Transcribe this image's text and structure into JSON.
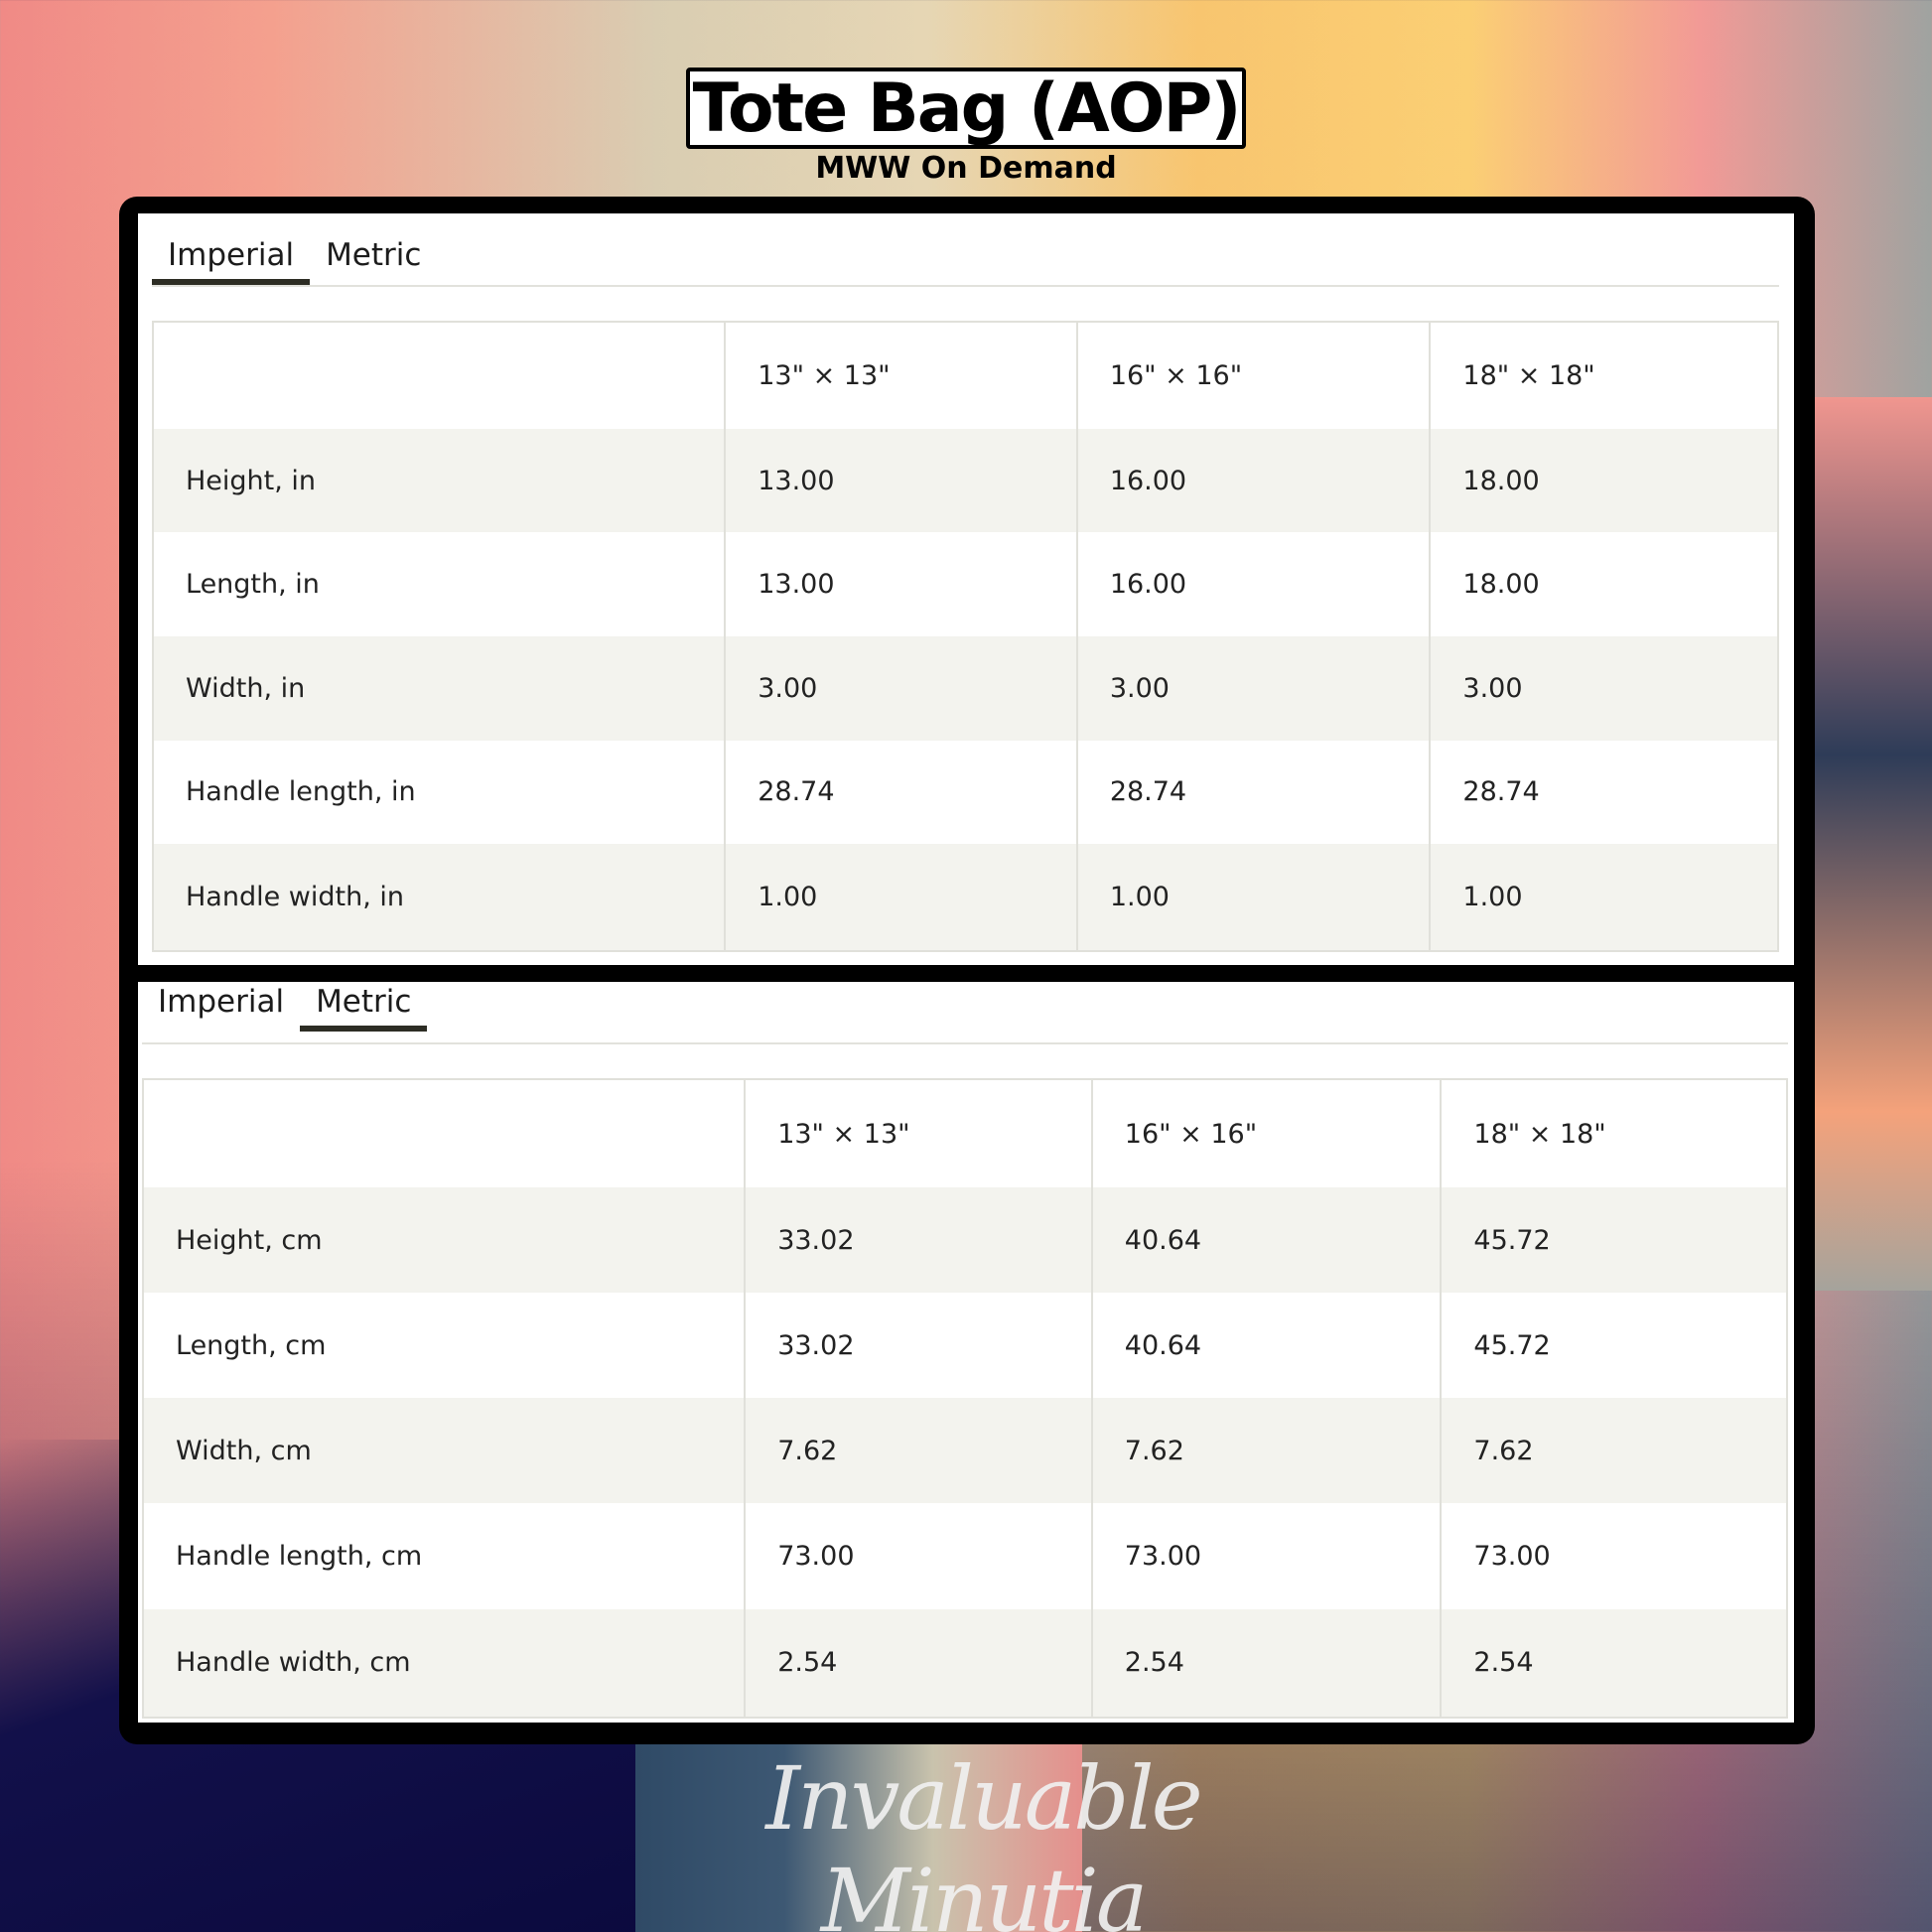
{
  "header": {
    "title": "Tote Bag (AOP)",
    "subtitle": "MWW On Demand"
  },
  "colors": {
    "frame": "#000000",
    "panel": "#ffffff",
    "row_alt": "#f3f3ee",
    "tab_underline": "#2d2d24"
  },
  "imperial_panel": {
    "tabs": [
      {
        "label": "Imperial",
        "active": true
      },
      {
        "label": "Metric",
        "active": false
      }
    ],
    "columns": [
      "",
      "13\" × 13\"",
      "16\" × 16\"",
      "18\" × 18\""
    ],
    "rows": [
      [
        "Height, in",
        "13.00",
        "16.00",
        "18.00"
      ],
      [
        "Length, in",
        "13.00",
        "16.00",
        "18.00"
      ],
      [
        "Width, in",
        "3.00",
        "3.00",
        "3.00"
      ],
      [
        "Handle length, in",
        "28.74",
        "28.74",
        "28.74"
      ],
      [
        "Handle width, in",
        "1.00",
        "1.00",
        "1.00"
      ]
    ]
  },
  "metric_panel": {
    "tabs": [
      {
        "label": "Imperial",
        "active": false
      },
      {
        "label": "Metric",
        "active": true
      }
    ],
    "columns": [
      "",
      "13\" × 13\"",
      "16\" × 16\"",
      "18\" × 18\""
    ],
    "rows": [
      [
        "Height, cm",
        "33.02",
        "40.64",
        "45.72"
      ],
      [
        "Length, cm",
        "33.02",
        "40.64",
        "45.72"
      ],
      [
        "Width, cm",
        "7.62",
        "7.62",
        "7.62"
      ],
      [
        "Handle length, cm",
        "73.00",
        "73.00",
        "73.00"
      ],
      [
        "Handle width, cm",
        "2.54",
        "2.54",
        "2.54"
      ]
    ]
  },
  "watermark": "Invaluable Minutia"
}
